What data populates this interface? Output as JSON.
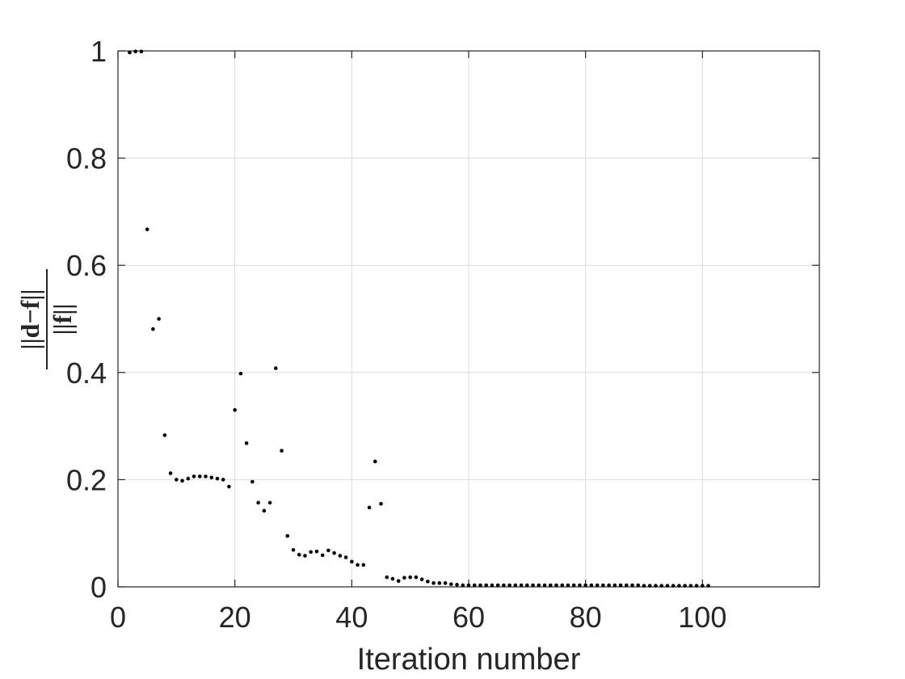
{
  "chart_data": {
    "type": "scatter",
    "title": "",
    "xlabel": "Iteration number",
    "ylabel_numerator": "||d−f||",
    "ylabel_denominator": "||f||",
    "xlim": [
      0,
      120
    ],
    "ylim": [
      0,
      1
    ],
    "xticks": [
      0,
      20,
      40,
      60,
      80,
      100
    ],
    "yticks": [
      0,
      0.2,
      0.4,
      0.6,
      0.8,
      1
    ],
    "xtick_labels": [
      "0",
      "20",
      "40",
      "60",
      "80",
      "100"
    ],
    "ytick_labels": [
      "0",
      "0.2",
      "0.4",
      "0.6",
      "0.8",
      "1"
    ],
    "grid": true,
    "marker_color": "#000000",
    "series": [
      {
        "x": [
          2,
          3,
          4,
          5,
          6,
          7,
          8,
          9,
          10,
          11,
          12,
          13,
          14,
          15,
          16,
          17,
          18,
          19,
          20,
          21,
          22,
          23,
          24,
          25,
          26,
          27,
          28,
          29,
          30,
          31,
          32,
          33,
          34,
          35,
          36,
          37,
          38,
          39,
          40,
          41,
          42,
          43,
          44,
          45,
          46,
          47,
          48,
          49,
          50,
          51,
          52,
          53,
          54,
          55,
          56,
          57,
          58,
          59,
          60,
          61,
          62,
          63,
          64,
          65,
          66,
          67,
          68,
          69,
          70,
          71,
          72,
          73,
          74,
          75,
          76,
          77,
          78,
          79,
          80,
          81,
          82,
          83,
          84,
          85,
          86,
          87,
          88,
          89,
          90,
          91,
          92,
          93,
          94,
          95,
          96,
          97,
          98,
          99,
          100,
          101
        ],
        "y": [
          0.997,
          0.999,
          0.999,
          0.667,
          0.481,
          0.5,
          0.283,
          0.212,
          0.2,
          0.198,
          0.202,
          0.206,
          0.206,
          0.206,
          0.204,
          0.202,
          0.2,
          0.187,
          0.33,
          0.398,
          0.268,
          0.196,
          0.157,
          0.142,
          0.157,
          0.408,
          0.254,
          0.095,
          0.069,
          0.06,
          0.058,
          0.065,
          0.066,
          0.059,
          0.068,
          0.063,
          0.058,
          0.055,
          0.047,
          0.041,
          0.041,
          0.148,
          0.234,
          0.155,
          0.018,
          0.015,
          0.011,
          0.017,
          0.018,
          0.018,
          0.014,
          0.01,
          0.007,
          0.007,
          0.007,
          0.005,
          0.004,
          0.003,
          0.003,
          0.003,
          0.003,
          0.003,
          0.003,
          0.003,
          0.003,
          0.003,
          0.003,
          0.003,
          0.003,
          0.003,
          0.003,
          0.003,
          0.003,
          0.003,
          0.003,
          0.003,
          0.003,
          0.003,
          0.003,
          0.003,
          0.003,
          0.003,
          0.003,
          0.003,
          0.003,
          0.003,
          0.003,
          0.003,
          0.002,
          0.002,
          0.002,
          0.002,
          0.002,
          0.002,
          0.002,
          0.002,
          0.002,
          0.002,
          0.002,
          0.002
        ]
      }
    ]
  }
}
